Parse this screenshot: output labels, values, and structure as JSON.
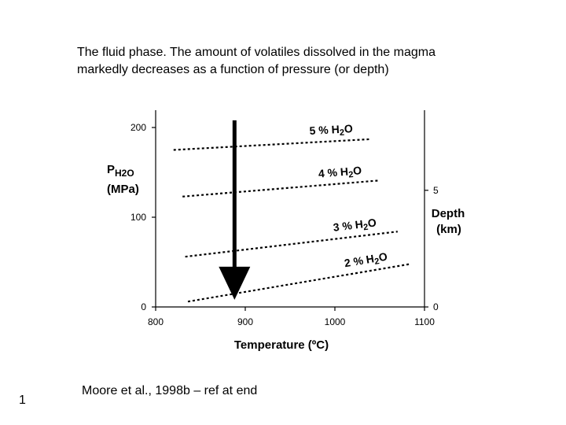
{
  "slide": {
    "caption_line1": "The fluid phase. The amount of volatiles dissolved in the magma",
    "caption_line2": "markedly decreases as a function of pressure (or depth)",
    "reference": "Moore et al., 1998b – ref at end",
    "page_number": "1"
  },
  "chart_data": {
    "type": "line",
    "xlabel": "Temperature (ºC)",
    "ylabel_left_main": "P",
    "ylabel_left_sub": "H2O",
    "ylabel_left_unit": "(MPa)",
    "ylabel_right": "Depth",
    "ylabel_right_unit": "(km)",
    "xlim": [
      800,
      1100
    ],
    "ylim": [
      0,
      200
    ],
    "x_ticks": [
      800,
      900,
      1000,
      1100
    ],
    "y_ticks": [
      0,
      100,
      200
    ],
    "right_ticks": [
      {
        "label": "0",
        "pressure": 0
      },
      {
        "label": "5",
        "pressure": 130
      }
    ],
    "grid": false,
    "series": [
      {
        "name": "5 % H2O",
        "label_prefix": "5 %",
        "label_chem": "H",
        "label_sub": "2",
        "label_end": "O",
        "x": [
          820,
          1040
        ],
        "y": [
          175,
          187
        ]
      },
      {
        "name": "4 % H2O",
        "label_prefix": "4 %",
        "label_chem": "H",
        "label_sub": "2",
        "label_end": "O",
        "x": [
          830,
          1050
        ],
        "y": [
          123,
          141
        ]
      },
      {
        "name": "3 % H2O",
        "label_prefix": "3 %",
        "label_chem": "H",
        "label_sub": "2",
        "label_end": "O",
        "x": [
          833,
          1070
        ],
        "y": [
          56,
          84
        ]
      },
      {
        "name": "2 % H2O",
        "label_prefix": "2 %",
        "label_chem": "H",
        "label_sub": "2",
        "label_end": "O",
        "x": [
          836,
          1085
        ],
        "y": [
          6,
          48
        ]
      }
    ],
    "arrow": {
      "x": 888,
      "y_start": 208,
      "y_end": 8
    }
  }
}
